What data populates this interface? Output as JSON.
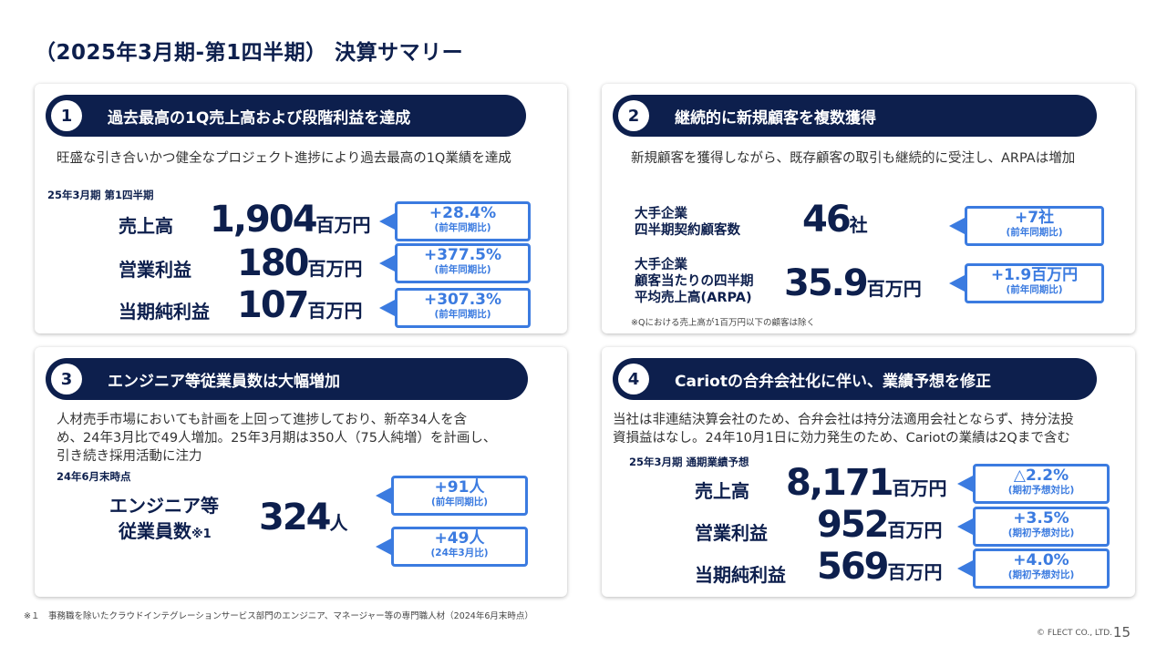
{
  "page_title": "（2025年3月期-第1四半期） 決算サマリー",
  "card1": {
    "num": "1",
    "heading": "過去最高の1Q売上高および段階利益を達成",
    "desc": "旺盛な引き合いかつ健全なプロジェクト進捗により過去最高の1Q業績を達成",
    "period": "25年3月期 第1四半期",
    "rows": [
      {
        "label": "売上高",
        "value": "1,904",
        "unit": "百万円",
        "change": "+28.4%",
        "basis": "(前年同期比)"
      },
      {
        "label": "営業利益",
        "value": "180",
        "unit": "百万円",
        "change": "+377.5%",
        "basis": "(前年同期比)"
      },
      {
        "label": "当期純利益",
        "value": "107",
        "unit": "百万円",
        "change": "+307.3%",
        "basis": "(前年同期比)"
      }
    ]
  },
  "card2": {
    "num": "2",
    "heading": "継続的に新規顧客を複数獲得",
    "desc": "新規顧客を獲得しながら、既存顧客の取引も継続的に受注し、ARPAは増加",
    "rows": [
      {
        "label_line1": "大手企業",
        "label_line2": "四半期契約顧客数",
        "label_line3": "",
        "value": "46",
        "unit": "社",
        "change": "+7社",
        "basis": "(前年同期比)"
      },
      {
        "label_line1": "大手企業",
        "label_line2": "顧客当たりの四半期",
        "label_line3": "平均売上高(ARPA)",
        "value": "35.9",
        "unit": "百万円",
        "change": "+1.9百万円",
        "basis": "(前年同期比)"
      }
    ],
    "note": "※Qにおける売上高が1百万円以下の顧客は除く"
  },
  "card3": {
    "num": "3",
    "heading": "エンジニア等従業員数は大幅増加",
    "desc_line1": "人材売手市場においても計画を上回って進捗しており、新卒34人を含",
    "desc_line2": "め、24年3月比で49人増加。25年3月期は350人（75人純増）を計画し、",
    "desc_line3": "引き続き採用活動に注力",
    "as_of": "24年6月末時点",
    "label_line1": "エンジニア等",
    "label_line2": "従業員数",
    "label_mark": "※1",
    "value": "324",
    "unit": "人",
    "callouts": [
      {
        "change": "+91人",
        "basis": "(前年同期比)"
      },
      {
        "change": "+49人",
        "basis": "(24年3月比)"
      }
    ]
  },
  "card4": {
    "num": "4",
    "heading": "Cariotの合弁会社化に伴い、業績予想を修正",
    "desc_line1": "当社は非連結決算会社のため、合弁会社は持分法適用会社とならず、持分法投",
    "desc_line2": "資損益はなし。24年10月1日に効力発生のため、Cariotの業績は2Qまで含む",
    "period": "25年3月期 通期業績予想",
    "rows": [
      {
        "label": "売上高",
        "value": "8,171",
        "unit": "百万円",
        "change": "△2.2%",
        "basis": "(期初予想対比)"
      },
      {
        "label": "営業利益",
        "value": "952",
        "unit": "百万円",
        "change": "+3.5%",
        "basis": "(期初予想対比)"
      },
      {
        "label": "当期純利益",
        "value": "569",
        "unit": "百万円",
        "change": "+4.0%",
        "basis": "(期初予想対比)"
      }
    ]
  },
  "footnote": "※１　事務職を除いたクラウドインテグレーションサービス部門のエンジニア、マネージャー等の専門職人材（2024年6月末時点）",
  "copyright": "© FLECT CO., LTD.",
  "page_number": "15"
}
